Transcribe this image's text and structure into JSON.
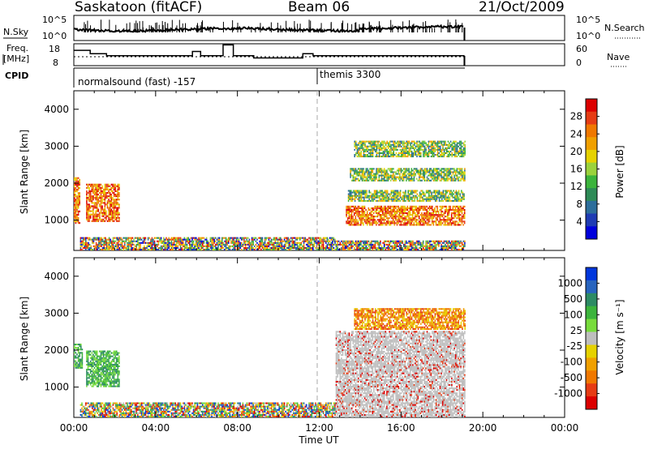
{
  "header": {
    "station": "Saskatoon (fitACF)",
    "beam": "Beam 06",
    "date": "21/Oct/2009"
  },
  "side_labels": {
    "nsky": "N.Sky",
    "nsearch": "N.Search",
    "freq_top": "Freq.",
    "freq_bottom": "[MHz]",
    "nave": "Nave",
    "cpid": "CPID",
    "scale_1e5": "10^5",
    "scale_1e0": "10^0",
    "freq_hi": "18",
    "freq_lo": "8",
    "nave_hi": "60",
    "nave_lo": "0"
  },
  "cpid_labels": {
    "left": "normalsound (fast) -157",
    "right": "themis 3300"
  },
  "chart_data": [
    {
      "type": "heatmap",
      "name": "Power panel",
      "xlabel": "",
      "ylabel": "Slant Range [km]",
      "x_unit": "hours UT",
      "xlim": [
        0,
        24
      ],
      "ylim": [
        180,
        4500
      ],
      "yticks": [
        "1000",
        "2000",
        "3000",
        "4000"
      ],
      "colorbar": {
        "label": "Power [dB]",
        "ticks": [
          "4",
          "8",
          "12",
          "16",
          "20",
          "24",
          "28"
        ],
        "range": [
          0,
          30
        ],
        "colors": [
          "#0000dc",
          "#1f3cb4",
          "#2d6e9b",
          "#2e8b57",
          "#3cb43c",
          "#9bd23c",
          "#e6d200",
          "#f0a000",
          "#f07800",
          "#e63c14",
          "#dc0000"
        ]
      },
      "regions": [
        {
          "t0": 0.0,
          "t1": 0.3,
          "r0": 900,
          "r1": 2150,
          "level": "strong"
        },
        {
          "t0": 0.6,
          "t1": 2.2,
          "r0": 950,
          "r1": 1950,
          "level": "strong"
        },
        {
          "t0": 0.3,
          "t1": 12.8,
          "r0": 180,
          "r1": 500,
          "level": "mixed"
        },
        {
          "t0": 12.8,
          "t1": 19.1,
          "r0": 180,
          "r1": 450,
          "level": "mixed"
        },
        {
          "t0": 13.3,
          "t1": 19.1,
          "r0": 850,
          "r1": 1350,
          "level": "strong"
        },
        {
          "t0": 13.4,
          "t1": 19.1,
          "r0": 1500,
          "r1": 1800,
          "level": "medium"
        },
        {
          "t0": 13.5,
          "t1": 19.1,
          "r0": 2050,
          "r1": 2400,
          "level": "medium"
        },
        {
          "t0": 13.7,
          "t1": 19.1,
          "r0": 2700,
          "r1": 3150,
          "level": "medium"
        }
      ]
    },
    {
      "type": "heatmap",
      "name": "Velocity panel",
      "xlabel": "Time UT",
      "ylabel": "Slant Range [km]",
      "x_unit": "hours UT",
      "xlim": [
        0,
        24
      ],
      "ylim": [
        180,
        4500
      ],
      "xticks": [
        "00:00",
        "04:00",
        "08:00",
        "12:00",
        "16:00",
        "20:00",
        "00:00"
      ],
      "yticks": [
        "1000",
        "2000",
        "3000",
        "4000"
      ],
      "colorbar": {
        "label": "Velocity [m s⁻¹]",
        "ticks": [
          "1000",
          "500",
          "100",
          "25",
          "-25",
          "-100",
          "-500",
          "-1000"
        ],
        "colors": [
          "#0037dc",
          "#2864be",
          "#2d8b64",
          "#3cb43c",
          "#78dc3c",
          "#bebebe",
          "#e6d200",
          "#f0a000",
          "#f07800",
          "#e63c14",
          "#dc0000"
        ]
      },
      "regions": [
        {
          "t0": 0.0,
          "t1": 0.4,
          "r0": 1500,
          "r1": 2150,
          "level": "toward"
        },
        {
          "t0": 0.6,
          "t1": 2.2,
          "r0": 1000,
          "r1": 1950,
          "level": "toward"
        },
        {
          "t0": 0.3,
          "t1": 12.8,
          "r0": 180,
          "r1": 550,
          "level": "mixed"
        },
        {
          "t0": 12.8,
          "t1": 19.1,
          "r0": 180,
          "r1": 2500,
          "level": "zero"
        },
        {
          "t0": 13.7,
          "t1": 19.1,
          "r0": 2550,
          "r1": 3100,
          "level": "away"
        }
      ]
    }
  ],
  "timeline": {
    "nsky_segments": [
      [
        0,
        0.45
      ],
      [
        4,
        0.5
      ],
      [
        8,
        0.55
      ],
      [
        12,
        0.5
      ],
      [
        14,
        0.35
      ],
      [
        19.1,
        0.35
      ]
    ],
    "freq_segments": [
      [
        0,
        15
      ],
      [
        0.8,
        13.5
      ],
      [
        1.6,
        12.5
      ],
      [
        5.8,
        14.5
      ],
      [
        6.2,
        12.5
      ],
      [
        7.3,
        17.5
      ],
      [
        7.8,
        12.5
      ],
      [
        8.8,
        11.5
      ],
      [
        11.2,
        13.5
      ],
      [
        11.7,
        12.5
      ],
      [
        19.1,
        12.5
      ]
    ],
    "end_hour": 19.1,
    "cpid_change_hour": 12.0
  }
}
